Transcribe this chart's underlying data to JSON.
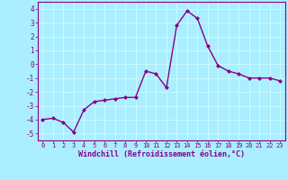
{
  "x": [
    0,
    1,
    2,
    3,
    4,
    5,
    6,
    7,
    8,
    9,
    10,
    11,
    12,
    13,
    14,
    15,
    16,
    17,
    18,
    19,
    20,
    21,
    22,
    23
  ],
  "y": [
    -4.0,
    -3.9,
    -4.2,
    -4.9,
    -3.3,
    -2.7,
    -2.6,
    -2.5,
    -2.4,
    -2.4,
    -0.5,
    -0.7,
    -1.7,
    2.8,
    3.85,
    3.3,
    1.3,
    -0.1,
    -0.5,
    -0.7,
    -1.0,
    -1.0,
    -1.0,
    -1.2
  ],
  "line_color": "#880088",
  "marker": "D",
  "marker_size": 2.0,
  "linewidth": 1.0,
  "bg_color": "#aaeeff",
  "grid_color": "#ccffff",
  "xlabel": "Windchill (Refroidissement éolien,°C)",
  "xlabel_color": "#880088",
  "tick_color": "#880088",
  "ylim": [
    -5.5,
    4.5
  ],
  "xlim": [
    -0.5,
    23.5
  ],
  "yticks": [
    -5,
    -4,
    -3,
    -2,
    -1,
    0,
    1,
    2,
    3,
    4
  ],
  "xticks": [
    0,
    1,
    2,
    3,
    4,
    5,
    6,
    7,
    8,
    9,
    10,
    11,
    12,
    13,
    14,
    15,
    16,
    17,
    18,
    19,
    20,
    21,
    22,
    23
  ],
  "spine_color": "#880088",
  "font_family": "monospace"
}
